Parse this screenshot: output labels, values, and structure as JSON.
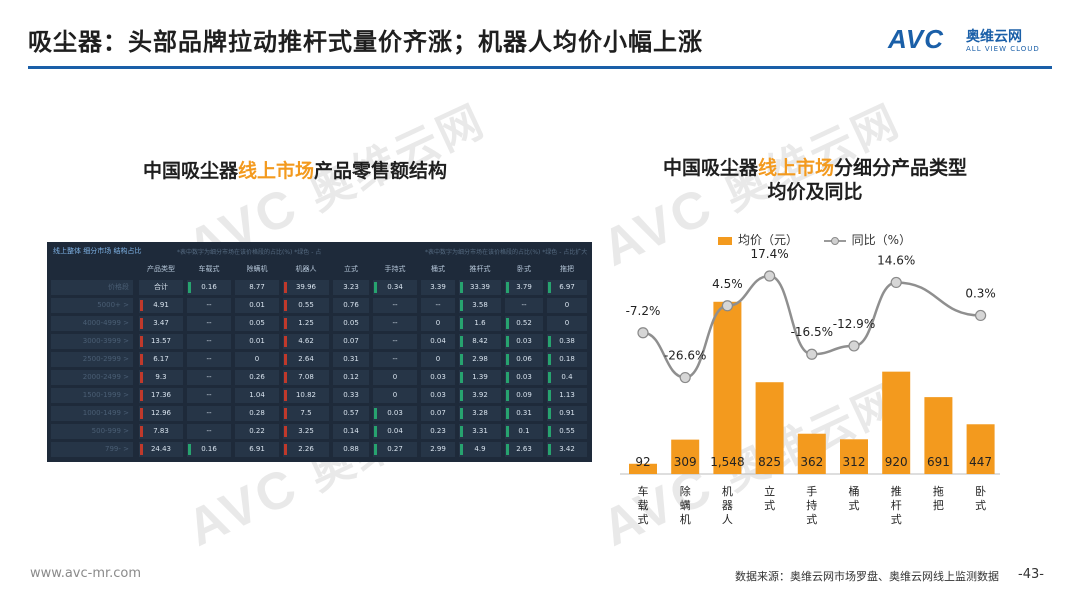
{
  "title": "吸尘器：头部品牌拉动推杆式量价齐涨；机器人均价小幅上涨",
  "logo": {
    "mark": "AVC",
    "cn": "奥维云网",
    "en": "ALL VIEW CLOUD"
  },
  "watermark": {
    "mark": "AVC",
    "cn": "奥维云网",
    "en": "ALL VIEW CLOUD"
  },
  "left_title": {
    "pre": "中国吸尘器",
    "highlight": "线上市场",
    "post": "产品零售额结构"
  },
  "right_title": {
    "line1_pre": "中国吸尘器",
    "line1_highlight": "线上市场",
    "line1_post": "分细分产品类型",
    "line2": "均价及同比"
  },
  "dashboard": {
    "header": "线上整体 细分市场 结构占比",
    "note1": "*表中数字为细分市场在该价格段的占比(%)  *绿色 - 占",
    "note2": "*表中数字为细分市场在该价格段的占比(%)  *绿色 - 占比扩大",
    "columns": [
      "产品类型",
      "车载式",
      "除螨机",
      "机器人",
      "立式",
      "手持式",
      "桶式",
      "推杆式",
      "卧式",
      "拖把"
    ],
    "rows": [
      {
        "label": "价格段",
        "cells": [
          "合计",
          "0.16",
          "8.77",
          "39.96",
          "3.23",
          "0.34",
          "3.39",
          "33.39",
          "3.79",
          "6.97"
        ]
      },
      {
        "label": "5000+ >",
        "cells": [
          "4.91",
          "--",
          "0.01",
          "0.55",
          "0.76",
          "--",
          "--",
          "3.58",
          "--",
          "0"
        ]
      },
      {
        "label": "4000-4999 >",
        "cells": [
          "3.47",
          "--",
          "0.05",
          "1.25",
          "0.05",
          "--",
          "0",
          "1.6",
          "0.52",
          "0"
        ]
      },
      {
        "label": "3000-3999 >",
        "cells": [
          "13.57",
          "--",
          "0.01",
          "4.62",
          "0.07",
          "--",
          "0.04",
          "8.42",
          "0.03",
          "0.38"
        ]
      },
      {
        "label": "2500-2999 >",
        "cells": [
          "6.17",
          "--",
          "0",
          "2.64",
          "0.31",
          "--",
          "0",
          "2.98",
          "0.06",
          "0.18"
        ]
      },
      {
        "label": "2000-2499 >",
        "cells": [
          "9.3",
          "--",
          "0.26",
          "7.08",
          "0.12",
          "0",
          "0.03",
          "1.39",
          "0.03",
          "0.4"
        ]
      },
      {
        "label": "1500-1999 >",
        "cells": [
          "17.36",
          "--",
          "1.04",
          "10.82",
          "0.33",
          "0",
          "0.03",
          "3.92",
          "0.09",
          "1.13"
        ]
      },
      {
        "label": "1000-1499 >",
        "cells": [
          "12.96",
          "--",
          "0.28",
          "7.5",
          "0.57",
          "0.03",
          "0.07",
          "3.28",
          "0.31",
          "0.91"
        ]
      },
      {
        "label": "500-999 >",
        "cells": [
          "7.83",
          "--",
          "0.22",
          "3.25",
          "0.14",
          "0.04",
          "0.23",
          "3.31",
          "0.1",
          "0.55"
        ]
      },
      {
        "label": "799- >",
        "cells": [
          "24.43",
          "0.16",
          "6.91",
          "2.26",
          "0.88",
          "0.27",
          "2.99",
          "4.9",
          "2.63",
          "3.42"
        ]
      }
    ]
  },
  "legend": {
    "bar": "均价（元）",
    "line": "同比（%）"
  },
  "colors": {
    "bar": "#f39a1e",
    "line": "#8f8f8f",
    "brand": "#1a5fa8",
    "dash_bg": "#1e2a3a"
  },
  "chart_data": {
    "type": "bar+line",
    "categories": [
      "车载式",
      "除螨机",
      "机器人",
      "立式",
      "手持式",
      "桶式",
      "推杆式",
      "拖把",
      "卧式"
    ],
    "series": [
      {
        "name": "均价（元）",
        "type": "bar",
        "values": [
          92,
          309,
          1548,
          825,
          362,
          312,
          920,
          691,
          447
        ],
        "labels": [
          "92",
          "309",
          "1,548",
          "825",
          "362",
          "312",
          "920",
          "691",
          "447"
        ]
      },
      {
        "name": "同比（%）",
        "type": "line",
        "values": [
          -7.2,
          -26.6,
          4.5,
          17.4,
          -16.5,
          -12.9,
          14.6,
          null,
          0.3
        ],
        "labels": [
          "-7.2%",
          "-26.6%",
          "4.5%",
          "17.4%",
          "-16.5%",
          "-12.9%",
          "14.6%",
          "",
          "0.3%"
        ]
      }
    ],
    "bar_ylim": [
      0,
      1600
    ],
    "line_ylim": [
      -45,
      20
    ],
    "legend_position": "top"
  },
  "footer": {
    "website": "www.avc-mr.com",
    "source": "数据来源：奥维云网市场罗盘、奥维云网线上监测数据",
    "page": "-43-"
  }
}
